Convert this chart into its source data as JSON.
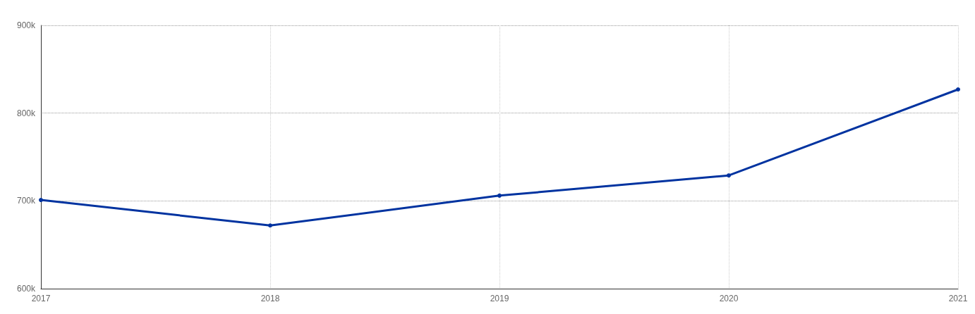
{
  "chart_data": {
    "type": "line",
    "categories": [
      "2017",
      "2018",
      "2019",
      "2020",
      "2021"
    ],
    "series": [
      {
        "color": "#0033a0",
        "values": [
          701000,
          672000,
          706000,
          729000,
          827000
        ]
      }
    ],
    "ylim": [
      600000,
      900000
    ],
    "yticks": [
      {
        "value": 600000,
        "label": "600k"
      },
      {
        "value": 700000,
        "label": "700k"
      },
      {
        "value": 800000,
        "label": "800k"
      },
      {
        "value": 900000,
        "label": "900k"
      }
    ],
    "grid": true,
    "marker": "circle",
    "line_style": "solid"
  }
}
